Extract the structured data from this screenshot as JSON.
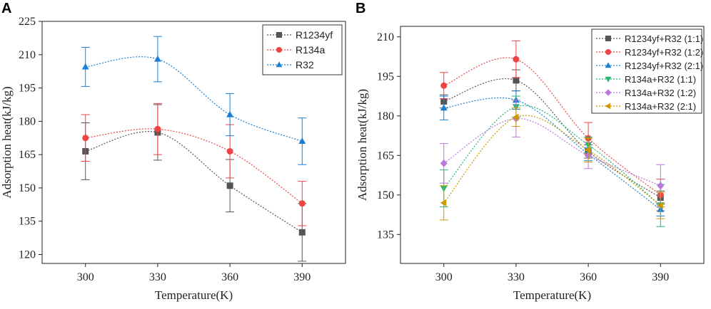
{
  "chart_data": [
    {
      "panel_label": "A",
      "type": "line",
      "xlabel": "Temperature(K)",
      "ylabel": "Adsorption heat(kJ/kg)",
      "x": [
        300,
        330,
        360,
        390
      ],
      "xticks": [
        "300",
        "330",
        "360",
        "390"
      ],
      "yticks": [
        "120",
        "135",
        "150",
        "165",
        "180",
        "195",
        "210",
        "225"
      ],
      "xlim": [
        282,
        408
      ],
      "ylim": [
        116,
        225
      ],
      "series": [
        {
          "name": "R1234yf",
          "color": "#555555",
          "marker": "square",
          "values": [
            166.5,
            175,
            151,
            130
          ],
          "errors": [
            12.8,
            12.5,
            11.8,
            13
          ]
        },
        {
          "name": "R134a",
          "color": "#ee4444",
          "marker": "circle",
          "values": [
            172.5,
            176.5,
            166.5,
            143
          ],
          "errors": [
            10.5,
            11.5,
            12,
            10
          ]
        },
        {
          "name": "R32",
          "color": "#1a7fd4",
          "marker": "triangle-up",
          "values": [
            204.5,
            208,
            183,
            171
          ],
          "errors": [
            8.8,
            10.2,
            9.5,
            10.5
          ]
        }
      ]
    },
    {
      "panel_label": "B",
      "type": "line",
      "xlabel": "Temperature(K)",
      "ylabel": "Adsorption heat(kJ/kg)",
      "x": [
        300,
        330,
        360,
        390
      ],
      "xticks": [
        "300",
        "330",
        "360",
        "390"
      ],
      "yticks": [
        "135",
        "150",
        "165",
        "180",
        "195",
        "210"
      ],
      "xlim": [
        282,
        408
      ],
      "ylim": [
        124,
        214
      ],
      "series": [
        {
          "name": "R1234yf+R32 (1:1)",
          "color": "#555555",
          "marker": "square",
          "values": [
            185.5,
            193.5,
            166.5,
            149
          ],
          "errors": [
            2.5,
            4,
            2.5,
            2.5
          ]
        },
        {
          "name": "R1234yf+R32 (1:2)",
          "color": "#ee4444",
          "marker": "circle",
          "values": [
            191.5,
            201.5,
            171.5,
            150
          ],
          "errors": [
            5,
            7,
            6,
            6
          ]
        },
        {
          "name": "R1234yf+R32 (2:1)",
          "color": "#1a7fd4",
          "marker": "triangle-up",
          "values": [
            183,
            186,
            165.5,
            144.5
          ],
          "errors": [
            4.5,
            3.5,
            2.5,
            2.5
          ]
        },
        {
          "name": "R134a+R32 (1:1)",
          "color": "#22b573",
          "marker": "triangle-down",
          "values": [
            152.5,
            183.5,
            169,
            146
          ],
          "errors": [
            7,
            4,
            3,
            8
          ]
        },
        {
          "name": "R134a+R32 (1:2)",
          "color": "#bb77dd",
          "marker": "diamond",
          "values": [
            162,
            179,
            165,
            153.5
          ],
          "errors": [
            7.5,
            7,
            5,
            8
          ]
        },
        {
          "name": "R134a+R32 (2:1)",
          "color": "#cc9900",
          "marker": "triangle-left",
          "values": [
            147,
            179.5,
            167,
            146
          ],
          "errors": [
            6.5,
            3.5,
            4.5,
            5
          ]
        }
      ]
    }
  ]
}
